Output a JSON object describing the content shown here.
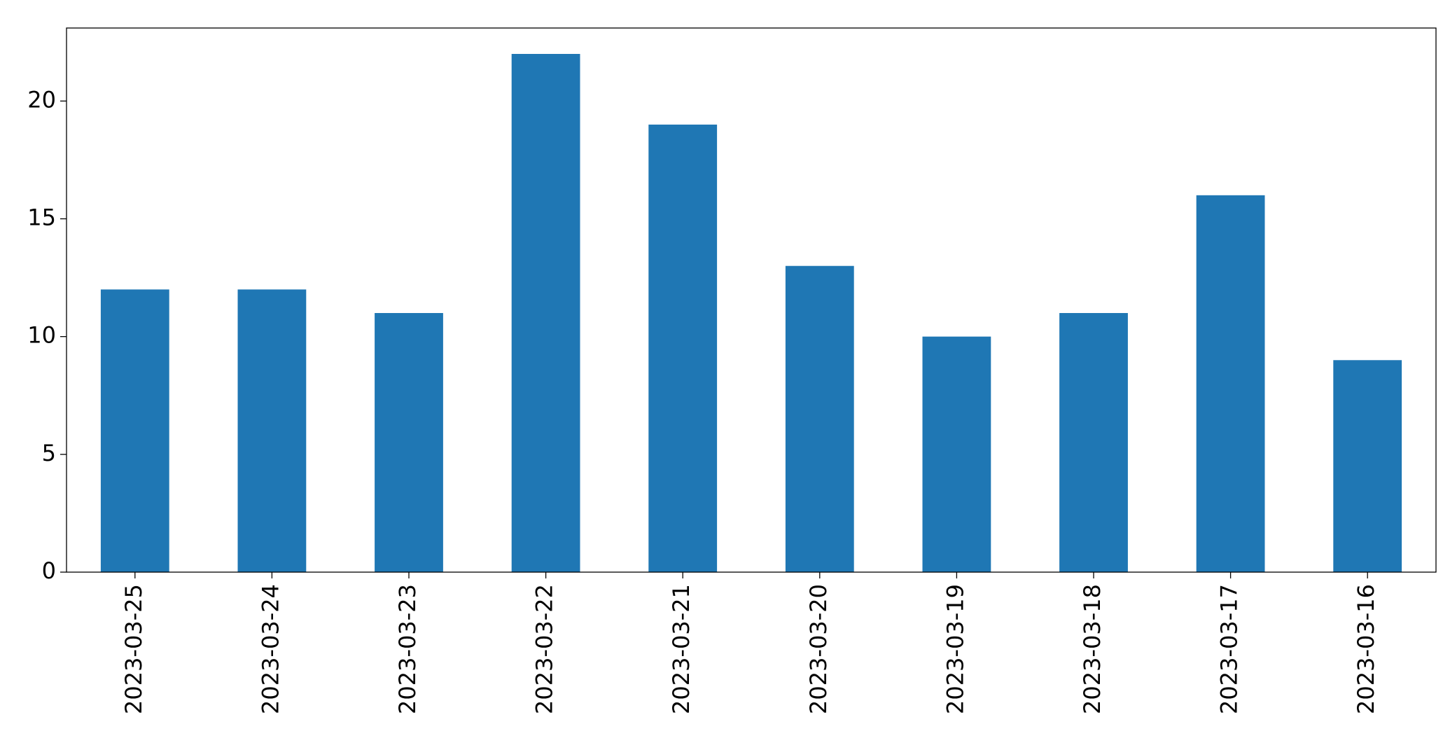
{
  "chart_data": {
    "type": "bar",
    "categories": [
      "2023-03-25",
      "2023-03-24",
      "2023-03-23",
      "2023-03-22",
      "2023-03-21",
      "2023-03-20",
      "2023-03-19",
      "2023-03-18",
      "2023-03-17",
      "2023-03-16"
    ],
    "values": [
      12,
      12,
      11,
      22,
      19,
      13,
      10,
      11,
      16,
      9
    ],
    "color": "#1f77b4",
    "ylim": [
      0,
      23.1
    ],
    "yticks": [
      0,
      5,
      10,
      15,
      20
    ],
    "grid": false
  }
}
